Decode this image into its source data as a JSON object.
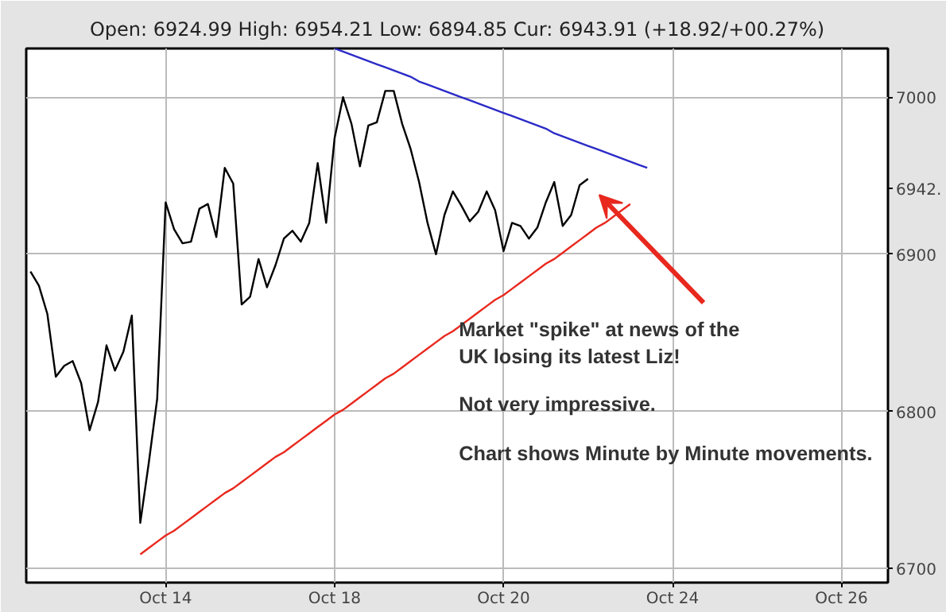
{
  "chart_data": {
    "type": "line",
    "subtitle": "Open: 6924.99 High: 6954.21 Low: 6894.85 Cur: 6943.91 (+18.92/+00.27%)",
    "categories": [
      null,
      null,
      null,
      null,
      null,
      null,
      null,
      null,
      null,
      null,
      null,
      null,
      null,
      null,
      null,
      null,
      "Oct 14",
      null,
      null,
      null,
      null,
      null,
      null,
      null,
      null,
      null,
      null,
      null,
      null,
      null,
      null,
      null,
      null,
      null,
      null,
      null,
      "Oct 18",
      null,
      null,
      null,
      null,
      null,
      null,
      null,
      null,
      null,
      null,
      null,
      null,
      null,
      null,
      null,
      null,
      null,
      null,
      null,
      "Oct 20",
      null,
      null,
      null,
      null,
      null,
      null,
      null,
      null,
      null,
      null,
      null,
      null,
      null,
      null,
      null,
      null,
      null,
      null,
      null,
      "Oct 24",
      null,
      null,
      null,
      null,
      null,
      null,
      null,
      null,
      null,
      null,
      null,
      null,
      null,
      null,
      null,
      null,
      null,
      null,
      null,
      "Oct 26",
      null,
      null,
      null,
      null,
      null
    ],
    "ylim": [
      6691,
      7031
    ],
    "yticks": [
      6700,
      6800,
      6900,
      {
        "value": 6942,
        "label": "6942."
      },
      7000
    ],
    "grid": true,
    "line_style": "solid",
    "marker": "none",
    "series": [
      {
        "color": "#000000",
        "values": [
          6889,
          6880,
          6862,
          6822,
          6829,
          6832,
          6818,
          6788,
          6806,
          6842,
          6826,
          6838,
          6861,
          6729,
          6767,
          6808,
          6933,
          6916,
          6907,
          6908,
          6929,
          6932,
          6911,
          6955,
          6945,
          6868,
          6873,
          6897,
          6879,
          6893,
          6910,
          6915,
          6908,
          6920,
          6958,
          6920,
          6974,
          7000,
          6983,
          6956,
          6982,
          6984,
          7004,
          7004,
          6983,
          6967,
          6946,
          6920,
          6900,
          6925,
          6940,
          6931,
          6921,
          6927,
          6940,
          6928,
          6902,
          6920,
          6918,
          6910,
          6917,
          6933,
          6946,
          6918,
          6925,
          6944,
          6948,
          null,
          null,
          null,
          null,
          null,
          null,
          null,
          null,
          null,
          null,
          null,
          null,
          null,
          null,
          null,
          null,
          null,
          null,
          null,
          null,
          null,
          null,
          null,
          null,
          null,
          null,
          null,
          null,
          null,
          null,
          null,
          null,
          null,
          null,
          null
        ]
      },
      {
        "color": "#2b2bc8",
        "values": [
          null,
          null,
          null,
          null,
          null,
          null,
          null,
          null,
          null,
          null,
          null,
          null,
          null,
          null,
          null,
          null,
          null,
          null,
          null,
          null,
          null,
          null,
          null,
          null,
          null,
          null,
          null,
          null,
          null,
          null,
          null,
          null,
          null,
          null,
          null,
          null,
          7031,
          7029,
          7027,
          7025,
          7023,
          7021,
          7019,
          7017,
          7015,
          7013,
          7010,
          7008,
          7006,
          7004,
          7002,
          7000,
          6998,
          6996,
          6994,
          6992,
          6990,
          6988,
          6986,
          6984,
          6982,
          6980,
          6977,
          6975,
          6973,
          6971,
          6969,
          6967,
          6965,
          6963,
          6961,
          6959,
          6957,
          6955,
          null,
          null,
          null,
          null,
          null,
          null,
          null,
          null,
          null,
          null,
          null,
          null,
          null,
          null,
          null,
          null,
          null,
          null,
          null,
          null,
          null,
          null,
          null,
          null,
          null,
          null,
          null,
          null
        ]
      },
      {
        "color": "#e8281e",
        "values": [
          null,
          null,
          null,
          null,
          null,
          null,
          null,
          null,
          null,
          null,
          null,
          null,
          null,
          6709,
          6713,
          6717,
          6721,
          6724,
          6728,
          6732,
          6736,
          6740,
          6744,
          6748,
          6751,
          6755,
          6759,
          6763,
          6767,
          6771,
          6774,
          6778,
          6782,
          6786,
          6790,
          6794,
          6798,
          6801,
          6805,
          6809,
          6813,
          6817,
          6821,
          6824,
          6828,
          6832,
          6836,
          6840,
          6844,
          6848,
          6851,
          6855,
          6859,
          6863,
          6867,
          6871,
          6874,
          6878,
          6882,
          6886,
          6890,
          6894,
          6897,
          6901,
          6905,
          6909,
          6913,
          6917,
          6920,
          6924,
          6928,
          6932,
          null,
          null,
          null,
          null,
          null,
          null,
          null,
          null,
          null,
          null,
          null,
          null,
          null,
          null,
          null,
          null,
          null,
          null,
          null,
          null,
          null,
          null,
          null,
          null,
          null,
          null,
          null,
          null,
          null,
          null
        ]
      }
    ],
    "annotations": [
      "Market \"spike\" at news of the\nUK losing its latest Liz!",
      "Not very impressive.",
      "Chart shows Minute by Minute movements."
    ]
  }
}
